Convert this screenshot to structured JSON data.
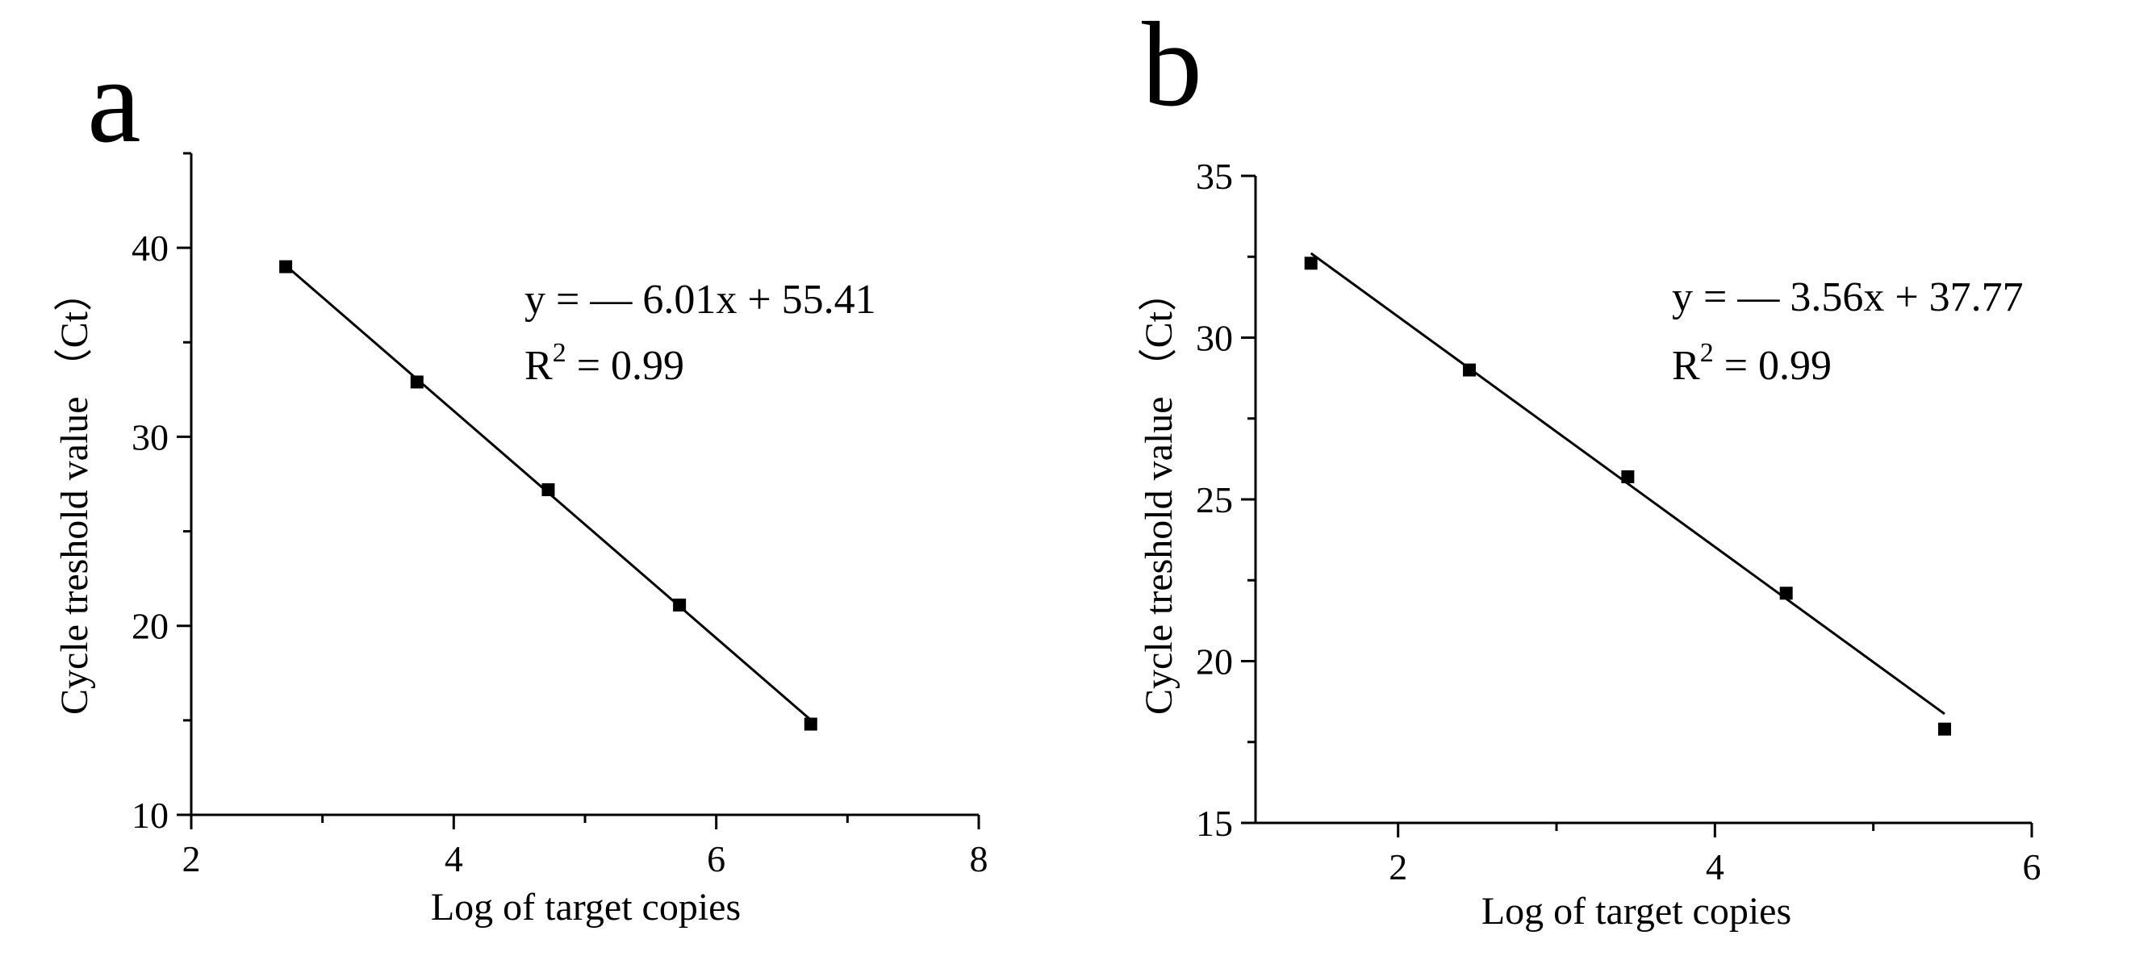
{
  "chart_data": [
    {
      "type": "scatter",
      "panel_label": "a",
      "xlabel": "Log of target copies",
      "ylabel": "Cycle treshold value （Ct）",
      "xlim": [
        2,
        8
      ],
      "ylim": [
        10,
        45
      ],
      "xticks": [
        2,
        4,
        6,
        8
      ],
      "yticks": [
        10,
        20,
        30,
        40
      ],
      "grid": false,
      "legend": "none",
      "equation": "y = — 6.01x + 55.41",
      "r2_prefix": "R",
      "r2_sup": "2",
      "r2_suffix": " = 0.99",
      "x": [
        2.72,
        3.72,
        4.72,
        5.72,
        6.72
      ],
      "y": [
        39.0,
        32.9,
        27.2,
        21.1,
        14.8
      ],
      "fit": {
        "slope": -6.01,
        "intercept": 55.41,
        "x_range": [
          2.72,
          6.72
        ]
      }
    },
    {
      "type": "scatter",
      "panel_label": "b",
      "xlabel": "Log of target copies",
      "ylabel": "Cycle treshold value （Ct）",
      "xlim": [
        1.1,
        6
      ],
      "ylim": [
        15,
        35
      ],
      "xticks": [
        2,
        4,
        6
      ],
      "yticks": [
        15,
        20,
        25,
        30,
        35
      ],
      "grid": false,
      "legend": "none",
      "equation": "y = — 3.56x + 37.77",
      "r2_prefix": "R",
      "r2_sup": "2",
      "r2_suffix": " = 0.99",
      "x": [
        1.45,
        2.45,
        3.45,
        4.45,
        5.45
      ],
      "y": [
        32.3,
        29.0,
        25.7,
        22.1,
        17.9
      ],
      "fit": {
        "slope": -3.56,
        "intercept": 37.77,
        "x_range": [
          1.45,
          5.45
        ]
      }
    }
  ]
}
